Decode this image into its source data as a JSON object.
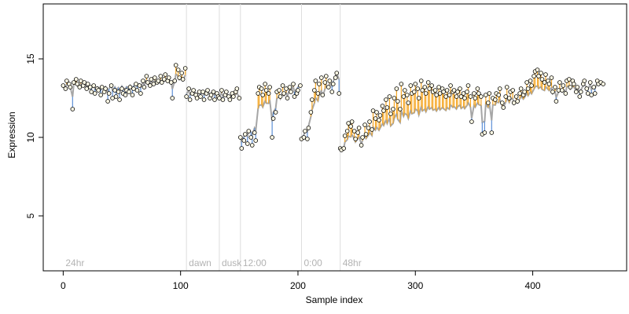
{
  "chart_data": {
    "type": "scatter",
    "title": "",
    "xlabel": "Sample index",
    "ylabel": "Expression",
    "xlim": [
      -17,
      480
    ],
    "ylim": [
      1.5,
      18.5
    ],
    "x_ticks": [
      0,
      100,
      200,
      300,
      400
    ],
    "y_ticks": [
      5,
      10,
      15
    ],
    "grid": false,
    "legend": "none",
    "colors": {
      "fit": "#a6a6a6",
      "residual_down": "#5b8fd6",
      "residual_up": "#f5a623",
      "point_fill": "#fffbe6",
      "point_stroke": "#000000",
      "divider": "#dddddd",
      "phase_label": "#b3b3b3"
    },
    "phases": [
      {
        "label": "24hr",
        "start": 0
      },
      {
        "label": "dawn",
        "start": 105
      },
      {
        "label": "dusk",
        "start": 133
      },
      {
        "label": "12:00",
        "start": 151
      },
      {
        "label": "0:00",
        "start": 203
      },
      {
        "label": "48hr",
        "start": 236
      }
    ],
    "fit_segments": [
      {
        "x": [
          0,
          104
        ],
        "y": [
          13.2,
          13.6
        ]
      },
      {
        "x": [
          105,
          132
        ],
        "y": [
          12.9,
          12.9
        ]
      },
      {
        "x": [
          133,
          150
        ],
        "y": [
          12.7,
          12.6
        ]
      },
      {
        "x": [
          151,
          202
        ],
        "y": [
          10.0,
          13.5
        ]
      },
      {
        "x": [
          203,
          235
        ],
        "y": [
          10.0,
          14.4
        ]
      },
      {
        "x": [
          236,
          460
        ],
        "y": [
          9.3,
          13.5
        ]
      }
    ],
    "series": [
      {
        "x": [
          0,
          2,
          3,
          5,
          6,
          8,
          9,
          11,
          12,
          14,
          15,
          17,
          18,
          20,
          21,
          23,
          24,
          26,
          27,
          29,
          30,
          32,
          33,
          35,
          36,
          38,
          39,
          41,
          42,
          44,
          45,
          47,
          48,
          50,
          51,
          53,
          54,
          56,
          57,
          59,
          60,
          62,
          63,
          65,
          66,
          68,
          69,
          71,
          72,
          74,
          75,
          77,
          78,
          80,
          81,
          83,
          84,
          86,
          87,
          89,
          90,
          92,
          93,
          95,
          96,
          98,
          99,
          101,
          102,
          104
        ],
        "y": [
          13.3,
          13.1,
          13.6,
          13.4,
          13.2,
          11.8,
          13.5,
          13.7,
          13.4,
          13.2,
          13.6,
          13.3,
          13.5,
          13.1,
          13.4,
          13.2,
          12.9,
          13.3,
          12.8,
          13.1,
          13.0,
          12.7,
          13.2,
          12.9,
          13.1,
          12.3,
          12.8,
          13.3,
          12.5,
          13.0,
          12.6,
          12.9,
          12.4,
          13.1,
          12.8,
          12.7,
          13.0,
          12.9,
          13.2,
          12.7,
          13.1,
          13.4,
          13.0,
          13.3,
          12.8,
          13.6,
          13.2,
          13.9,
          13.5,
          13.3,
          13.7,
          13.4,
          13.8,
          13.5,
          13.6,
          13.9,
          13.5,
          13.7,
          14.0,
          13.6,
          13.8,
          13.5,
          12.5,
          13.6,
          14.6,
          14.3,
          13.8,
          14.1,
          13.7,
          14.4
        ]
      },
      {
        "x": [
          105,
          107,
          108,
          110,
          111,
          113,
          114,
          116,
          117,
          119,
          120,
          122,
          123,
          125,
          126,
          128,
          129,
          131,
          132
        ],
        "y": [
          12.6,
          13.1,
          12.4,
          12.8,
          13.0,
          12.7,
          12.5,
          12.9,
          12.6,
          12.9,
          12.4,
          12.8,
          13.0,
          12.5,
          12.7,
          12.9,
          12.4,
          12.8,
          12.6
        ]
      },
      {
        "x": [
          133,
          135,
          136,
          138,
          139,
          141,
          142,
          144,
          145,
          147,
          148,
          150
        ],
        "y": [
          12.5,
          13.0,
          12.4,
          12.7,
          12.9,
          12.6,
          12.4,
          12.8,
          12.6,
          12.9,
          13.1,
          12.5
        ]
      },
      {
        "x": [
          151,
          152,
          154,
          155,
          157,
          158,
          160,
          161,
          163,
          164,
          166,
          167,
          169,
          170,
          172,
          173,
          175,
          176,
          178,
          179,
          181,
          182,
          184,
          185,
          187,
          188,
          190,
          191,
          193,
          194,
          196,
          197,
          199,
          200,
          202
        ],
        "y": [
          10.0,
          9.3,
          9.8,
          10.2,
          9.6,
          10.4,
          10.0,
          9.5,
          10.3,
          9.8,
          12.8,
          13.2,
          13.1,
          12.7,
          13.4,
          13.0,
          12.8,
          13.2,
          10.0,
          11.2,
          11.6,
          12.9,
          13.0,
          12.6,
          13.3,
          12.8,
          13.1,
          12.5,
          13.2,
          12.9,
          13.4,
          12.6,
          12.8,
          13.0,
          13.3
        ]
      },
      {
        "x": [
          203,
          205,
          206,
          208,
          209,
          211,
          212,
          214,
          215,
          217,
          218,
          220,
          221,
          223,
          224,
          226,
          227,
          229,
          230,
          232,
          233,
          235
        ],
        "y": [
          9.9,
          10.0,
          10.4,
          9.9,
          10.6,
          11.6,
          12.4,
          13.0,
          13.6,
          12.8,
          13.4,
          13.8,
          12.7,
          13.5,
          13.9,
          13.2,
          13.6,
          12.9,
          13.4,
          13.8,
          14.1,
          12.8
        ]
      },
      {
        "x": [
          236,
          237,
          239,
          240,
          242,
          243,
          245,
          246,
          248,
          249,
          251,
          252,
          254,
          255,
          257,
          258,
          260,
          261,
          263,
          264,
          266,
          267,
          269,
          270,
          272,
          273,
          275,
          276,
          278,
          279,
          281,
          282,
          284,
          285,
          287,
          288,
          290,
          291,
          293,
          294,
          296,
          297,
          299,
          300,
          302,
          303,
          305,
          306,
          308,
          309,
          311,
          312,
          314,
          315,
          317,
          318,
          320,
          321,
          323,
          324,
          326,
          327,
          329,
          330,
          332,
          333,
          335,
          336,
          338,
          339,
          341,
          342,
          344,
          345,
          347,
          348,
          350,
          351,
          353,
          354,
          356,
          357,
          359,
          360,
          362,
          363,
          365,
          366,
          368,
          369,
          371,
          372,
          374,
          375,
          377,
          378,
          380,
          381,
          383,
          384,
          386,
          387,
          389,
          390,
          392,
          393,
          395,
          396,
          398,
          399,
          401,
          402,
          404,
          405,
          407,
          408,
          410,
          411,
          413,
          414,
          416,
          417,
          419,
          420,
          422,
          423,
          425,
          426,
          428,
          429,
          431,
          432,
          434,
          435,
          437,
          438,
          440,
          441,
          443,
          444,
          446,
          447,
          449,
          450,
          452,
          453,
          455,
          456,
          458,
          460
        ],
        "y": [
          9.3,
          9.2,
          9.3,
          10.1,
          10.4,
          10.9,
          10.7,
          11.0,
          10.4,
          9.9,
          10.3,
          10.6,
          9.5,
          10.0,
          10.8,
          10.2,
          10.6,
          11.0,
          10.5,
          11.7,
          11.2,
          11.6,
          11.1,
          11.4,
          12.0,
          11.7,
          12.4,
          11.9,
          12.6,
          11.5,
          11.8,
          12.5,
          13.1,
          12.3,
          11.8,
          13.4,
          12.6,
          13.0,
          12.7,
          12.2,
          13.3,
          12.8,
          12.9,
          13.4,
          13.1,
          12.5,
          13.6,
          13.0,
          13.2,
          12.8,
          13.5,
          13.1,
          13.3,
          12.9,
          13.0,
          12.7,
          13.2,
          12.8,
          13.1,
          12.9,
          12.6,
          13.0,
          12.7,
          13.3,
          12.9,
          13.0,
          12.6,
          12.9,
          13.1,
          12.6,
          12.8,
          12.5,
          12.9,
          13.3,
          12.6,
          11.0,
          12.8,
          12.5,
          13.1,
          12.8,
          12.6,
          10.2,
          10.3,
          12.7,
          12.2,
          12.8,
          10.3,
          12.5,
          12.4,
          12.8,
          12.7,
          13.1,
          12.2,
          11.9,
          12.6,
          13.2,
          12.5,
          12.9,
          13.0,
          12.2,
          12.6,
          12.3,
          12.8,
          13.1,
          12.7,
          12.9,
          13.5,
          13.1,
          13.6,
          13.3,
          13.9,
          14.2,
          14.3,
          13.9,
          14.1,
          13.7,
          13.5,
          14.0,
          13.6,
          13.4,
          13.8,
          12.9,
          13.2,
          12.3,
          13.0,
          13.5,
          13.0,
          13.3,
          12.8,
          13.6,
          13.7,
          13.2,
          13.6,
          13.4,
          12.9,
          13.2,
          12.6,
          12.9,
          13.4,
          13.6,
          13.1,
          12.8,
          13.5,
          12.7,
          13.2,
          12.8,
          13.6,
          13.4,
          13.5,
          13.4
        ]
      }
    ]
  }
}
